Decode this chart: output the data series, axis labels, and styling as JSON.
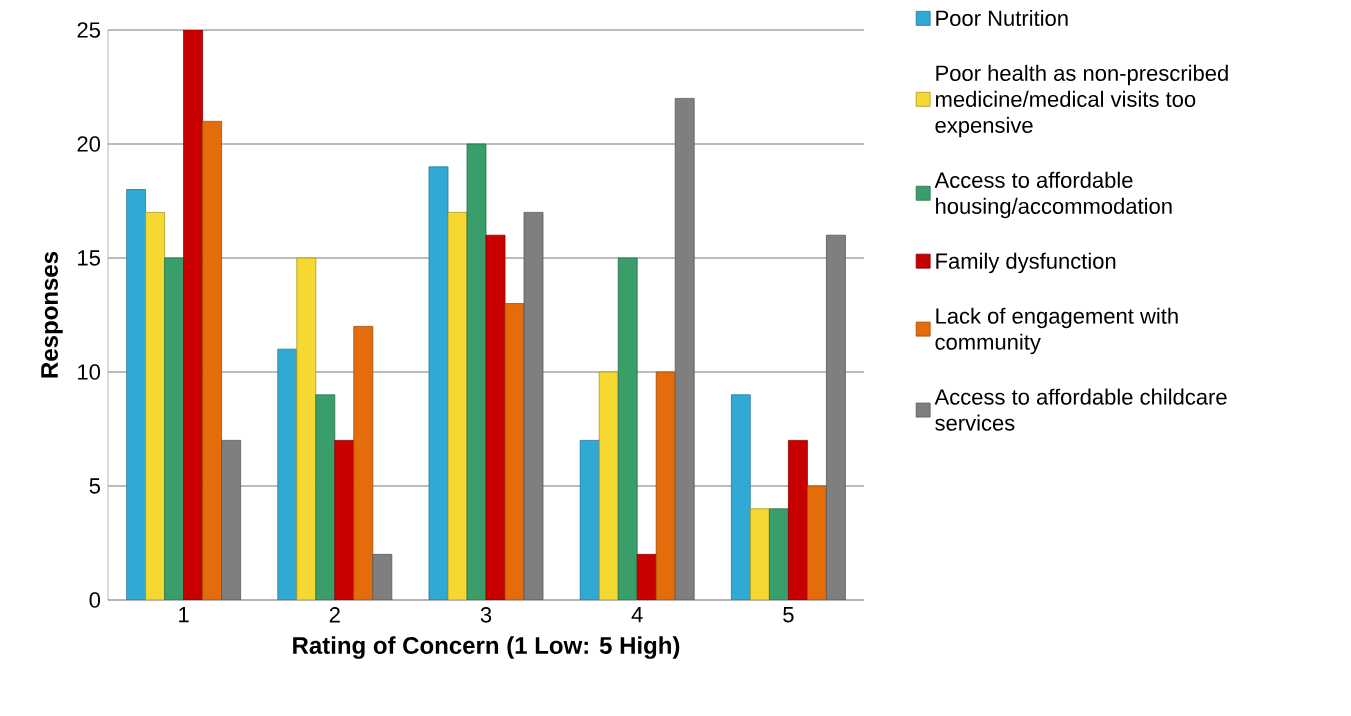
{
  "chart_data": {
    "type": "bar",
    "xlabel": "Rating of Concern (1 Low: 5 High)",
    "ylabel": "Responses",
    "categories": [
      "1",
      "2",
      "3",
      "4",
      "5"
    ],
    "series": [
      {
        "name": "Poor Nutrition",
        "color": "#31a9d5",
        "values": [
          18,
          11,
          19,
          7,
          9
        ]
      },
      {
        "name": "Poor health as non-prescribed medicine/medical visits too expensive",
        "color": "#f5d831",
        "values": [
          17,
          15,
          17,
          10,
          4
        ]
      },
      {
        "name": "Access to affordable housing/accommodation",
        "color": "#3a9e6a",
        "values": [
          15,
          9,
          20,
          15,
          4
        ]
      },
      {
        "name": "Family dysfunction",
        "color": "#c80000",
        "values": [
          25,
          7,
          16,
          2,
          7
        ]
      },
      {
        "name": "Lack of engagement with community",
        "color": "#e46c0a",
        "values": [
          21,
          12,
          13,
          10,
          5
        ]
      },
      {
        "name": "Access to affordable childcare services",
        "color": "#7f7f7f",
        "values": [
          7,
          2,
          17,
          22,
          16
        ]
      }
    ],
    "ylim": [
      0,
      25
    ],
    "yticks": [
      0,
      5,
      10,
      15,
      20,
      25
    ],
    "grid": "y",
    "legend": "right"
  }
}
